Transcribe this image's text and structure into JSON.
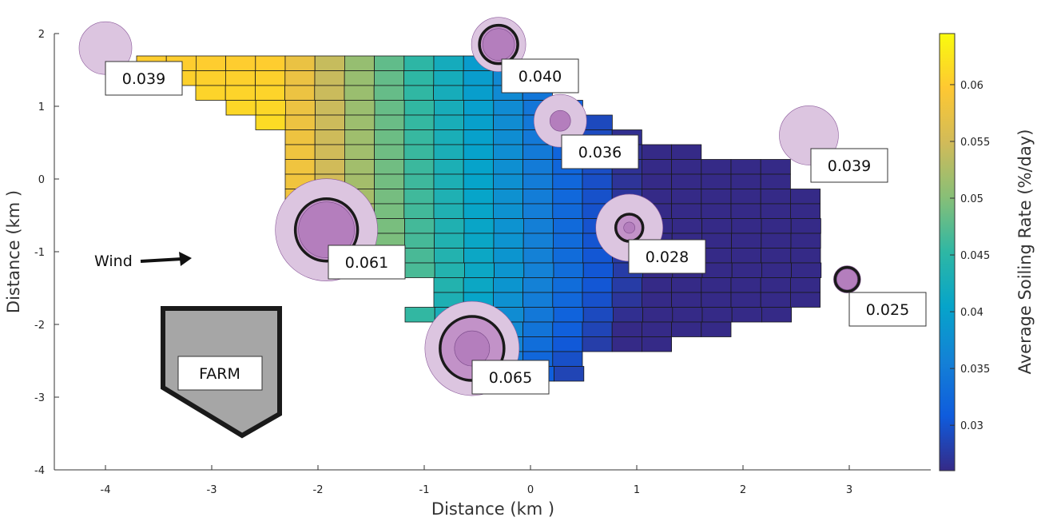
{
  "chart_data": {
    "type": "heatmap",
    "xlabel": "Distance (km )",
    "ylabel": "Distance (km )",
    "colorbar_label": "Average Soiling Rate (%/day)",
    "xlim": [
      -4.5,
      3.75
    ],
    "ylim": [
      -4,
      2
    ],
    "x_ticks": [
      -4,
      -3,
      -2,
      -1,
      0,
      1,
      2,
      3
    ],
    "y_ticks": [
      -4,
      -3,
      -2,
      -1,
      0,
      1,
      2
    ],
    "x_tick_labels": [
      "-4",
      "-3",
      "-2",
      "-1",
      "0",
      "1",
      "2",
      "3"
    ],
    "y_tick_labels": [
      "-4",
      "-3",
      "-2",
      "-1",
      "0",
      "1",
      "2"
    ],
    "colorbar_range": [
      0.026,
      0.0645
    ],
    "colorbar_ticks": [
      0.03,
      0.035,
      0.04,
      0.045,
      0.05,
      0.055,
      0.06
    ],
    "colorbar_tick_labels": [
      "0.03",
      "0.035",
      "0.04",
      "0.045",
      "0.05",
      "0.055",
      "0.06"
    ],
    "colormap": "parula",
    "grid": false,
    "stations": [
      {
        "x": -4.0,
        "y": 1.8,
        "value": 0.039,
        "label": "0.039"
      },
      {
        "x": -0.3,
        "y": 1.85,
        "value": 0.04,
        "label": "0.040"
      },
      {
        "x": 0.28,
        "y": 0.8,
        "value": 0.036,
        "label": "0.036"
      },
      {
        "x": 2.62,
        "y": 0.6,
        "value": 0.039,
        "label": "0.039"
      },
      {
        "x": -1.92,
        "y": -0.7,
        "value": 0.061,
        "label": "0.061"
      },
      {
        "x": 0.93,
        "y": -0.67,
        "value": 0.028,
        "label": "0.028"
      },
      {
        "x": 2.98,
        "y": -1.38,
        "value": 0.025,
        "label": "0.025"
      },
      {
        "x": -0.55,
        "y": -2.33,
        "value": 0.065,
        "label": "0.065"
      }
    ],
    "annotations": {
      "wind": "Wind",
      "farm": "FARM"
    }
  }
}
